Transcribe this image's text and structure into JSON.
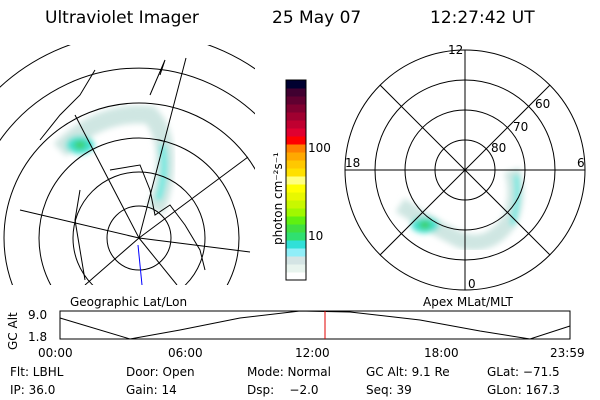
{
  "header": {
    "instrument": "Ultraviolet Imager",
    "date": "25 May 07",
    "time": "12:27:42 UT"
  },
  "left_map": {
    "label": "Geographic Lat/Lon"
  },
  "right_map": {
    "label": "Apex MLat/MLT",
    "mlt_labels": [
      "12",
      "18",
      "6",
      "0"
    ],
    "mlat_labels": [
      "60",
      "70",
      "80"
    ]
  },
  "colorbar": {
    "unit_label": "photon cm⁻²s⁻¹",
    "ticks": [
      "100",
      "10"
    ],
    "colors": [
      "#ffffff",
      "#e8f4ee",
      "#d4e4e4",
      "#90eef8",
      "#30e0d8",
      "#30e070",
      "#40e040",
      "#60f010",
      "#a0f800",
      "#c8f800",
      "#e8f800",
      "#ffff00",
      "#ffff80",
      "#ffe000",
      "#ffc800",
      "#ffa800",
      "#ff8000",
      "#ff0000",
      "#e00030",
      "#c00030",
      "#a00030",
      "#800030",
      "#600030",
      "#400030",
      "#000030"
    ]
  },
  "timeline": {
    "axis_label": "GC Alt",
    "y_ticks": [
      "9.0",
      "1.8"
    ],
    "x_ticks": [
      "00:00",
      "06:00",
      "12:00",
      "18:00",
      "23:59"
    ],
    "current_marker_color": "#e00000"
  },
  "info": {
    "row1": [
      "Flt: LBHL",
      "Door: Open",
      "Mode: Normal",
      "GC Alt: 9.1 Re",
      "GLat: −71.5"
    ],
    "row2": [
      "IP: 36.0",
      "Gain: 14",
      "Dsp:    −2.0",
      "Seq: 39",
      "GLon: 167.3"
    ]
  }
}
